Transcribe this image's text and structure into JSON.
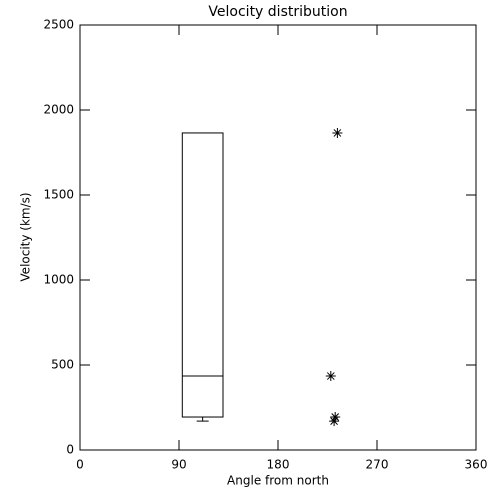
{
  "chart_data": {
    "type": "box",
    "title": "Velocity distribution",
    "x_label": "Angle from north",
    "y_label": "Velocity (km/s)",
    "xlim": [
      0,
      360
    ],
    "xticks": [
      0,
      90,
      180,
      270,
      360
    ],
    "ylim": [
      0,
      2500
    ],
    "yticks": [
      0,
      500,
      1000,
      1500,
      2000,
      2500
    ],
    "color": "#000000",
    "box": {
      "x": [
        93,
        130
      ],
      "low": 170,
      "q1": 194,
      "median": 435,
      "q3": 1865
    },
    "points": {
      "marker": "asterisk",
      "x": [
        234,
        228,
        232,
        231
      ],
      "values": [
        1865,
        435,
        194,
        170
      ]
    }
  }
}
